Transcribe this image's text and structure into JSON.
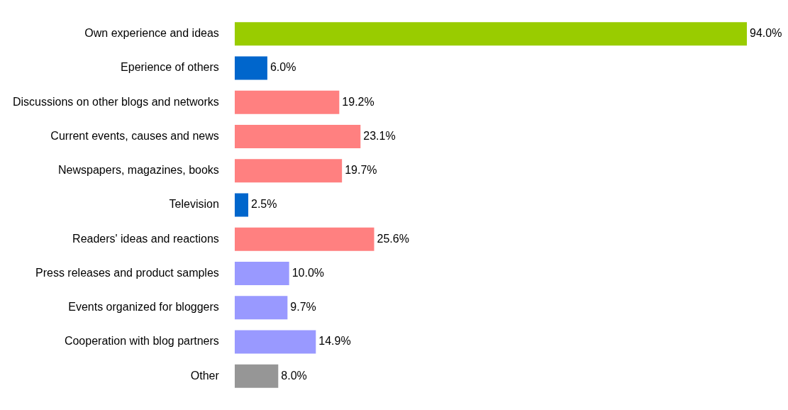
{
  "chart_data": {
    "type": "bar",
    "orientation": "horizontal",
    "categories": [
      "Own experience and ideas",
      "Eperience of others",
      "Discussions on other blogs and networks",
      "Current events, causes and news",
      "Newspapers, magazines, books",
      "Television",
      "Readers' ideas and reactions",
      "Press releases and product samples",
      "Events organized for bloggers",
      "Cooperation with blog partners",
      "Other"
    ],
    "values": [
      94.0,
      6.0,
      19.2,
      23.1,
      19.7,
      2.5,
      25.6,
      10.0,
      9.7,
      14.9,
      8.0
    ],
    "colors": [
      "#99cc00",
      "#0066cc",
      "#ff8080",
      "#ff8080",
      "#ff8080",
      "#0066cc",
      "#ff8080",
      "#9999ff",
      "#9999ff",
      "#9999ff",
      "#969696"
    ],
    "value_labels": [
      "94.0%",
      "6.0%",
      "19.2%",
      "23.1%",
      "19.7%",
      "2.5%",
      "25.6%",
      "10.0%",
      "9.7%",
      "14.9%",
      "8.0%"
    ],
    "grid": false,
    "legend": false,
    "tick_labels": "y"
  }
}
